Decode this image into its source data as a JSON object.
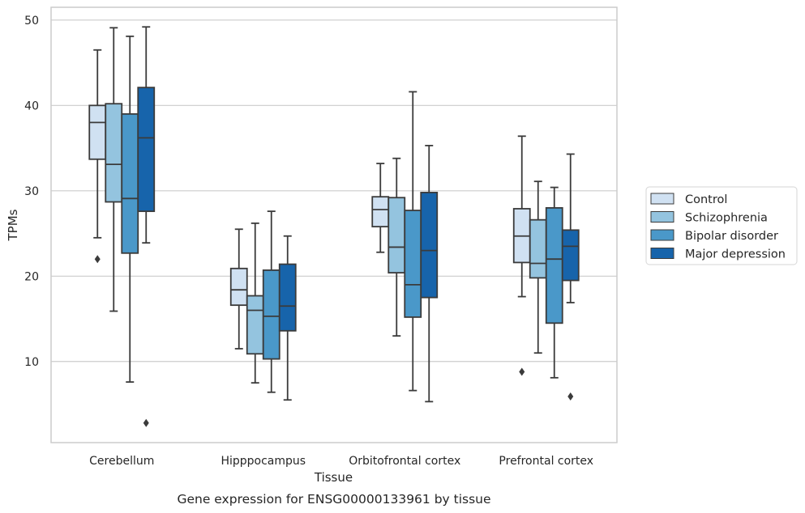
{
  "chart_data": {
    "type": "box",
    "title": "Gene expression for ENSG00000133961 by tissue",
    "xlabel": "Tissue",
    "ylabel": "TPMs",
    "ylim": [
      0.5,
      51.5
    ],
    "yticks": [
      10,
      20,
      30,
      40,
      50
    ],
    "grid": "horizontal",
    "legend_position": "right",
    "categories": [
      "Cerebellum",
      "Hipppocampus",
      "Orbitofrontal cortex",
      "Prefrontal cortex"
    ],
    "series": [
      {
        "name": "Control",
        "color": "#d0e1f2",
        "boxes": [
          {
            "whisker_low": 24.5,
            "q1": 33.7,
            "median": 38.0,
            "q3": 40.0,
            "whisker_high": 46.5,
            "outliers": [
              22.0
            ]
          },
          {
            "whisker_low": 11.5,
            "q1": 16.6,
            "median": 18.4,
            "q3": 20.9,
            "whisker_high": 25.5,
            "outliers": []
          },
          {
            "whisker_low": 22.8,
            "q1": 25.8,
            "median": 27.8,
            "q3": 29.3,
            "whisker_high": 33.2,
            "outliers": []
          },
          {
            "whisker_low": 17.6,
            "q1": 21.6,
            "median": 24.7,
            "q3": 27.9,
            "whisker_high": 36.4,
            "outliers": [
              8.8
            ]
          }
        ]
      },
      {
        "name": "Schizophrenia",
        "color": "#94c4df",
        "boxes": [
          {
            "whisker_low": 15.9,
            "q1": 28.7,
            "median": 33.1,
            "q3": 40.2,
            "whisker_high": 49.1,
            "outliers": []
          },
          {
            "whisker_low": 7.5,
            "q1": 10.9,
            "median": 16.0,
            "q3": 17.7,
            "whisker_high": 26.2,
            "outliers": []
          },
          {
            "whisker_low": 13.0,
            "q1": 20.4,
            "median": 23.4,
            "q3": 29.2,
            "whisker_high": 33.8,
            "outliers": []
          },
          {
            "whisker_low": 11.0,
            "q1": 19.8,
            "median": 21.5,
            "q3": 26.6,
            "whisker_high": 31.1,
            "outliers": []
          }
        ]
      },
      {
        "name": "Bipolar disorder",
        "color": "#4a98c9",
        "boxes": [
          {
            "whisker_low": 7.6,
            "q1": 22.7,
            "median": 29.1,
            "q3": 39.0,
            "whisker_high": 48.1,
            "outliers": []
          },
          {
            "whisker_low": 6.4,
            "q1": 10.3,
            "median": 15.3,
            "q3": 20.7,
            "whisker_high": 27.6,
            "outliers": []
          },
          {
            "whisker_low": 6.6,
            "q1": 15.2,
            "median": 19.0,
            "q3": 27.7,
            "whisker_high": 41.6,
            "outliers": []
          },
          {
            "whisker_low": 8.1,
            "q1": 14.5,
            "median": 22.0,
            "q3": 28.0,
            "whisker_high": 30.4,
            "outliers": []
          }
        ]
      },
      {
        "name": "Major depression",
        "color": "#1764ab",
        "boxes": [
          {
            "whisker_low": 23.9,
            "q1": 27.6,
            "median": 36.2,
            "q3": 42.1,
            "whisker_high": 49.2,
            "outliers": [
              2.8
            ]
          },
          {
            "whisker_low": 5.5,
            "q1": 13.6,
            "median": 16.5,
            "q3": 21.4,
            "whisker_high": 24.7,
            "outliers": []
          },
          {
            "whisker_low": 5.3,
            "q1": 17.5,
            "median": 23.0,
            "q3": 29.8,
            "whisker_high": 35.3,
            "outliers": []
          },
          {
            "whisker_low": 16.9,
            "q1": 19.5,
            "median": 23.5,
            "q3": 25.4,
            "whisker_high": 34.3,
            "outliers": [
              5.9
            ]
          }
        ]
      }
    ]
  }
}
